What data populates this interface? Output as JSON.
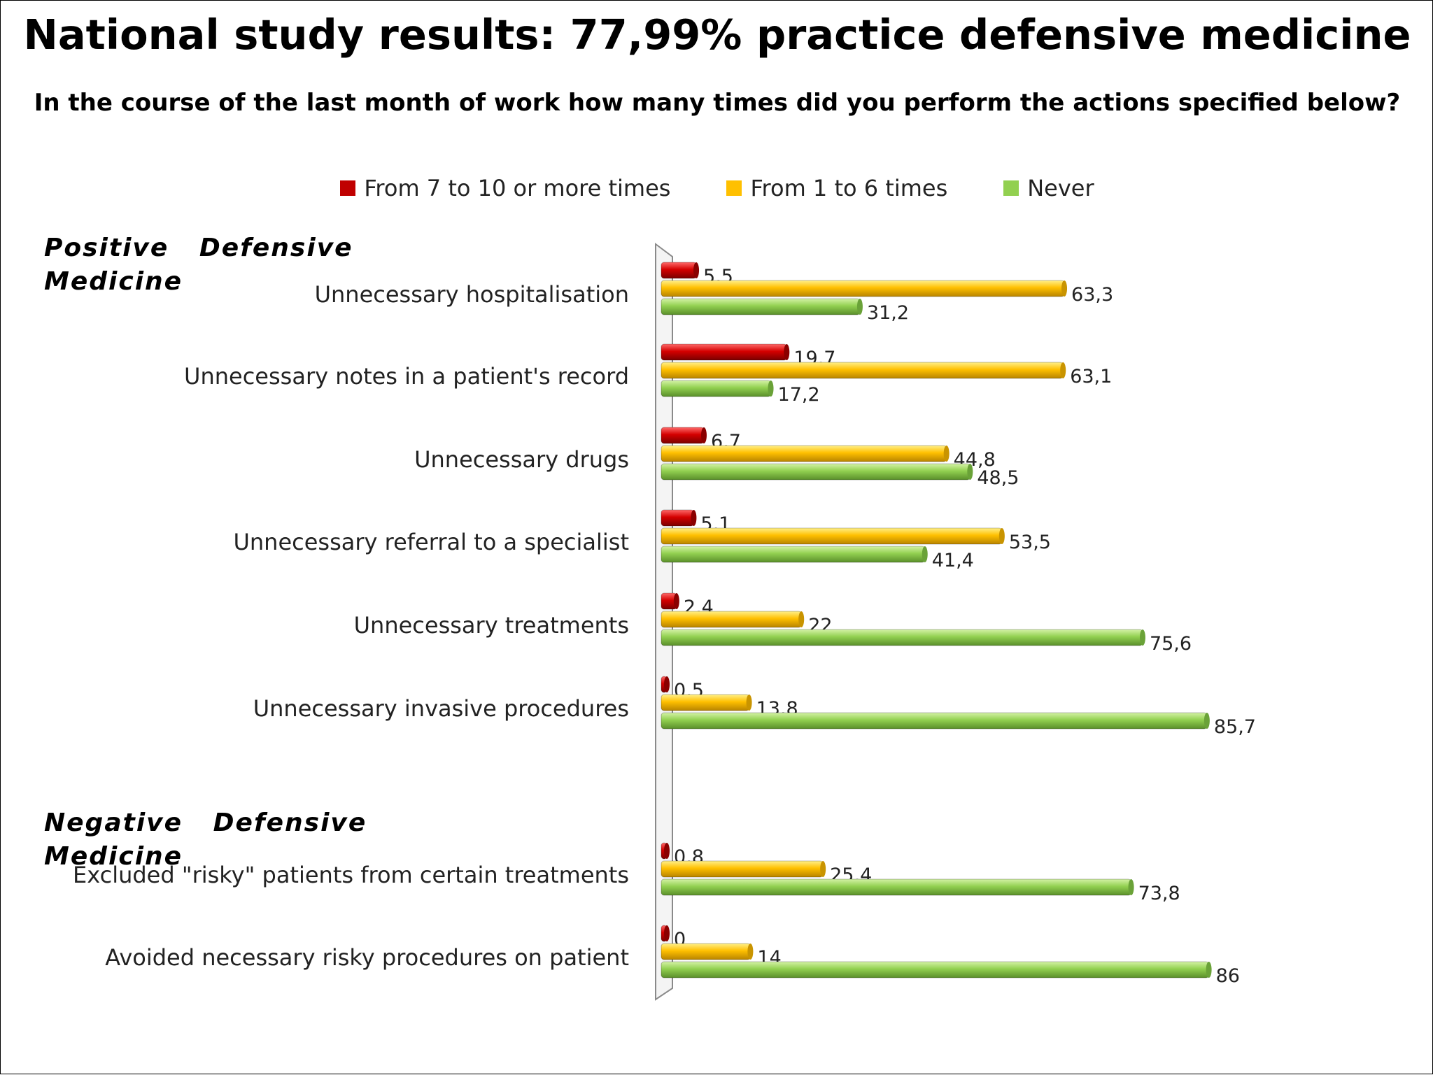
{
  "chart_data": {
    "type": "bar",
    "orientation": "horizontal",
    "title": "National study results: 77,99% practice defensive medicine",
    "subtitle": "In the course of the last month of work how many times did you perform the actions specified below?",
    "groups": [
      {
        "label_line1": "Positive   Defensive",
        "label_line2": "Medicine"
      },
      {
        "label_line1": "Negative   Defensive",
        "label_line2": "Medicine"
      }
    ],
    "categories": [
      "Unnecessary hospitalisation",
      "Unnecessary notes in a patient's record",
      "Unnecessary drugs",
      "Unnecessary referral to a specialist",
      "Unnecessary treatments",
      "Unnecessary invasive procedures",
      "Excluded \"risky\" patients from certain treatments",
      "Avoided necessary risky procedures on patient"
    ],
    "series": [
      {
        "name": "From 7 to 10 or more times",
        "color": "#c00000",
        "values": [
          5.5,
          19.7,
          6.7,
          5.1,
          2.4,
          0.5,
          0.8,
          0
        ]
      },
      {
        "name": "From 1 to 6 times",
        "color": "#ffc000",
        "values": [
          63.3,
          63.1,
          44.8,
          53.5,
          22,
          13.8,
          25.4,
          14
        ]
      },
      {
        "name": "Never",
        "color": "#92d050",
        "values": [
          31.2,
          17.2,
          48.5,
          41.4,
          75.6,
          85.7,
          73.8,
          86
        ]
      }
    ],
    "value_labels": [
      [
        "5,5",
        "19,7",
        "6,7",
        "5,1",
        "2,4",
        "0,5",
        "0,8",
        "0"
      ],
      [
        "63,3",
        "63,1",
        "44,8",
        "53,5",
        "22",
        "13,8",
        "25,4",
        "14"
      ],
      [
        "31,2",
        "17,2",
        "48,5",
        "41,4",
        "75,6",
        "85,7",
        "73,8",
        "86"
      ]
    ],
    "xlim": [
      0,
      100
    ],
    "grid": false,
    "legend_position": "top"
  }
}
